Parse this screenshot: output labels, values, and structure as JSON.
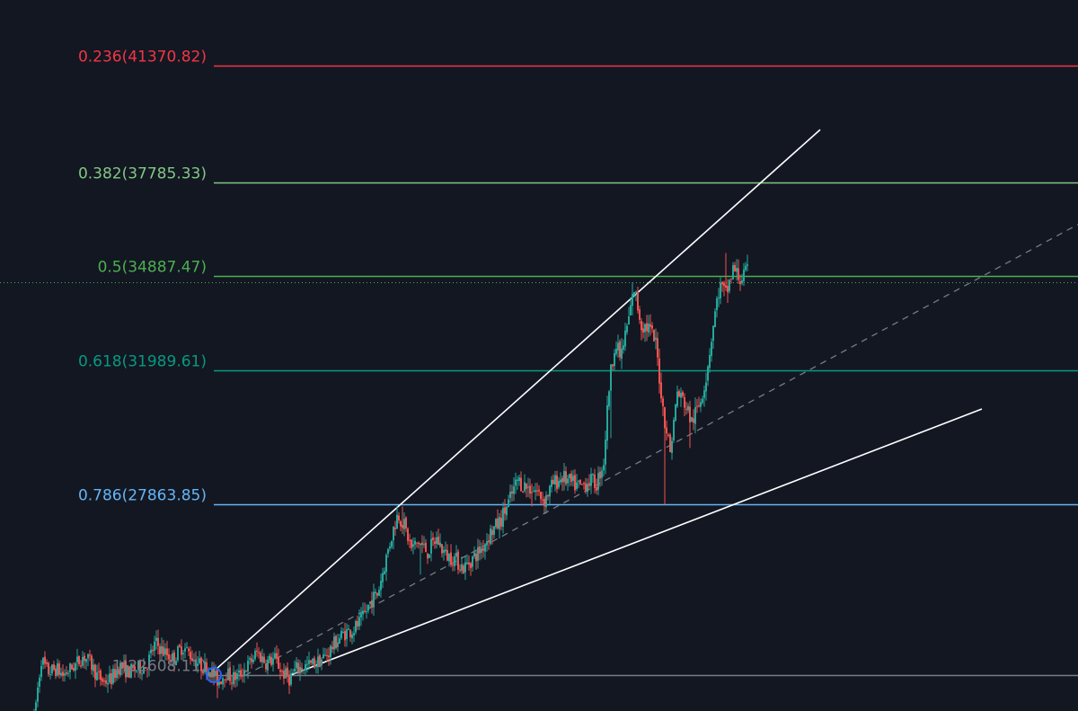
{
  "colors": {
    "background": "#131722",
    "up_candle": "#26a69a",
    "down_candle": "#ef5350",
    "trendline": "#ffffff",
    "midline": "#787b86",
    "current_price_line": "#4caf50",
    "anchor_circle": "#2962ff"
  },
  "fib_levels": [
    {
      "label": "0.236(41370.82)",
      "ratio": 0.236,
      "price": 41370.82,
      "color": "#f23645"
    },
    {
      "label": "0.382(37785.33)",
      "ratio": 0.382,
      "price": 37785.33,
      "color": "#81c784"
    },
    {
      "label": "0.5(34887.47)",
      "ratio": 0.5,
      "price": 34887.47,
      "color": "#4caf50"
    },
    {
      "label": "0.618(31989.61)",
      "ratio": 0.618,
      "price": 31989.61,
      "color": "#089981"
    },
    {
      "label": "0.786(27863.85)",
      "ratio": 0.786,
      "price": 27863.85,
      "color": "#64b5f6"
    },
    {
      "label": "1(22608.11)",
      "ratio": 1,
      "price": 22608.11,
      "color": "#787b86"
    }
  ],
  "chart_data": {
    "type": "candlestick",
    "title": "",
    "xlabel": "",
    "ylabel": "",
    "grid": false,
    "ylim": [
      21000,
      43000
    ],
    "price_path": [
      [
        0.0,
        21300
      ],
      [
        0.8,
        23100
      ],
      [
        1.5,
        22700
      ],
      [
        2.5,
        22800
      ],
      [
        3.2,
        22600
      ],
      [
        4.5,
        22900
      ],
      [
        5.5,
        23200
      ],
      [
        6.2,
        23000
      ],
      [
        7.0,
        22600
      ],
      [
        7.8,
        22400
      ],
      [
        8.6,
        22500
      ],
      [
        9.5,
        22900
      ],
      [
        10.5,
        22700
      ],
      [
        11.5,
        22800
      ],
      [
        12.5,
        22900
      ],
      [
        13.5,
        23600
      ],
      [
        14.5,
        23300
      ],
      [
        15.5,
        23100
      ],
      [
        16.5,
        23500
      ],
      [
        17.5,
        23200
      ],
      [
        18.5,
        22900
      ],
      [
        19.5,
        22800
      ],
      [
        20.5,
        22400
      ],
      [
        21.3,
        22700
      ],
      [
        22.0,
        22500
      ],
      [
        22.8,
        22600
      ],
      [
        23.8,
        22900
      ],
      [
        24.8,
        23300
      ],
      [
        25.8,
        23000
      ],
      [
        26.8,
        23100
      ],
      [
        27.6,
        22700
      ],
      [
        28.4,
        22500
      ],
      [
        29.2,
        22800
      ],
      [
        30.5,
        22900
      ],
      [
        31.5,
        23000
      ],
      [
        32.5,
        23200
      ],
      [
        33.5,
        23600
      ],
      [
        34.5,
        23900
      ],
      [
        35.5,
        24000
      ],
      [
        36.5,
        24300
      ],
      [
        37.5,
        24900
      ],
      [
        38.2,
        25100
      ],
      [
        39.0,
        26000
      ],
      [
        39.8,
        26900
      ],
      [
        40.5,
        27600
      ],
      [
        41.2,
        27200
      ],
      [
        42.0,
        26500
      ],
      [
        42.8,
        26700
      ],
      [
        43.8,
        26400
      ],
      [
        44.8,
        26800
      ],
      [
        45.8,
        26300
      ],
      [
        46.8,
        26200
      ],
      [
        47.8,
        25900
      ],
      [
        48.8,
        26200
      ],
      [
        49.8,
        26500
      ],
      [
        50.8,
        27000
      ],
      [
        51.8,
        27300
      ],
      [
        52.8,
        27900
      ],
      [
        53.8,
        28600
      ],
      [
        54.8,
        28400
      ],
      [
        55.8,
        28300
      ],
      [
        56.8,
        28000
      ],
      [
        57.8,
        28500
      ],
      [
        58.8,
        28700
      ],
      [
        59.8,
        28500
      ],
      [
        60.8,
        28400
      ],
      [
        61.8,
        28600
      ],
      [
        62.6,
        28500
      ],
      [
        63.4,
        29200
      ],
      [
        64.0,
        31500
      ],
      [
        64.6,
        32800
      ],
      [
        65.3,
        32400
      ],
      [
        66.0,
        33300
      ],
      [
        66.8,
        34500
      ],
      [
        67.6,
        33400
      ],
      [
        68.4,
        33300
      ],
      [
        69.2,
        32800
      ],
      [
        70.0,
        30800
      ],
      [
        70.8,
        29500
      ],
      [
        71.6,
        31300
      ],
      [
        72.4,
        31000
      ],
      [
        73.2,
        30400
      ],
      [
        74.0,
        30900
      ],
      [
        74.8,
        31800
      ],
      [
        75.6,
        33400
      ],
      [
        76.3,
        34600
      ],
      [
        77.0,
        34300
      ],
      [
        77.8,
        35100
      ],
      [
        78.6,
        34800
      ],
      [
        79.5,
        35000
      ]
    ],
    "extremes": [
      {
        "x": 41.0,
        "high": 27800
      },
      {
        "x": 43.0,
        "low": 25700
      },
      {
        "x": 55.5,
        "low": 27800
      },
      {
        "x": 64.2,
        "low": 29900
      },
      {
        "x": 66.7,
        "high": 34700
      },
      {
        "x": 70.3,
        "low": 27850
      },
      {
        "x": 73.0,
        "low": 29600
      },
      {
        "x": 77.0,
        "high": 35600
      },
      {
        "x": 20.3,
        "low": 21900
      }
    ],
    "trendlines": [
      {
        "name": "upper",
        "style": "solid",
        "from": [
          20.3,
          22800
        ],
        "to": [
          87.5,
          39400
        ]
      },
      {
        "name": "lower",
        "style": "solid",
        "from": [
          28.5,
          22600
        ],
        "to": [
          105.5,
          30800
        ]
      },
      {
        "name": "median",
        "style": "dashed",
        "from": [
          23.5,
          22600
        ],
        "to": [
          121.0,
          37200
        ]
      }
    ],
    "current_price": 34700
  }
}
